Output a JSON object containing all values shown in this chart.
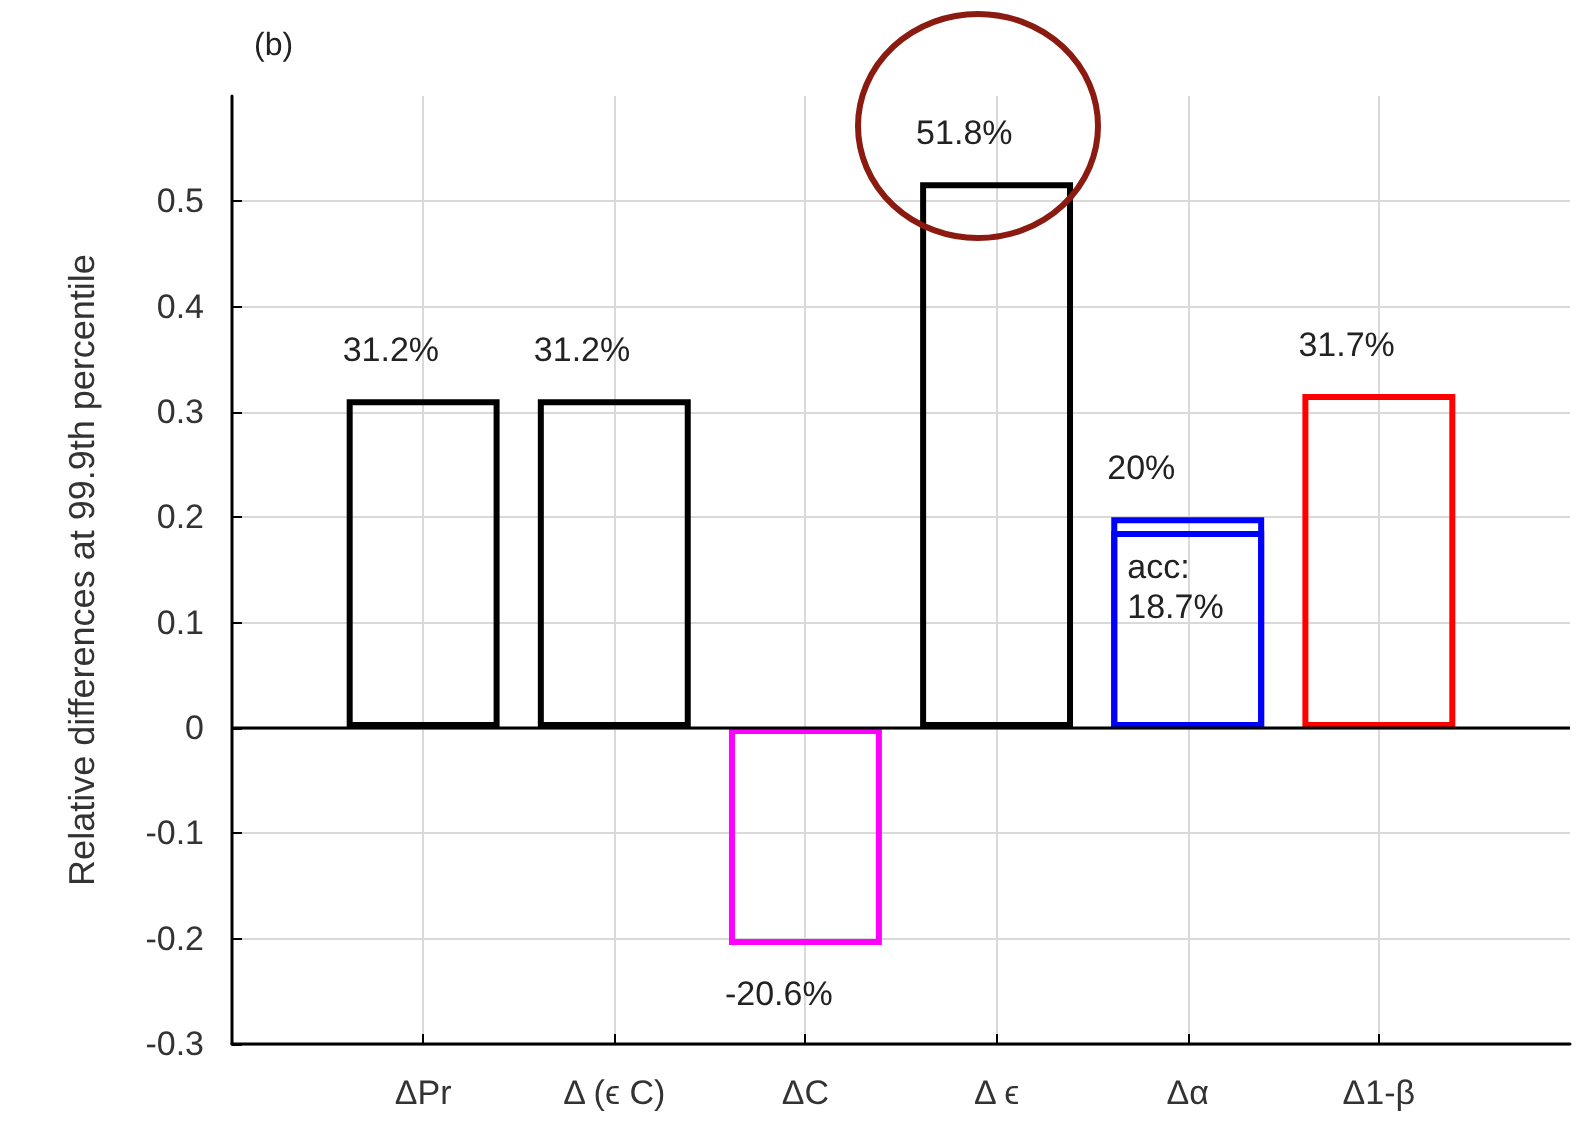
{
  "chart_data": {
    "type": "bar",
    "title": "(b)",
    "ylabel": "Relative differences at 99.9th percentile",
    "categories": [
      "ΔPr",
      "Δ (ϵ C)",
      "ΔC",
      "Δ ϵ",
      "Δα",
      "Δ1-β"
    ],
    "series": [
      {
        "colors": [
          "#000000",
          "#000000",
          "#ff00ff",
          "#000000",
          "#0000ff",
          "#ff0000"
        ],
        "values": [
          0.312,
          0.312,
          -0.206,
          0.518,
          0.2,
          0.317
        ],
        "value_labels": [
          "31.2%",
          "31.2%",
          "-20.6%",
          "51.8%",
          "20%",
          "31.7%"
        ]
      },
      {
        "color": "#0000ff",
        "values": [
          null,
          null,
          null,
          null,
          0.187,
          null
        ],
        "value_labels": [
          null,
          null,
          null,
          null,
          "acc: 18.7%",
          null
        ]
      }
    ],
    "ylim": [
      -0.3,
      0.6
    ],
    "yticks": [
      -0.3,
      -0.2,
      -0.1,
      0,
      0.1,
      0.2,
      0.3,
      0.4,
      0.5
    ],
    "grid": true,
    "ref_lines": [
      {
        "axis": "y",
        "value": 0,
        "color": "#000000"
      }
    ]
  }
}
